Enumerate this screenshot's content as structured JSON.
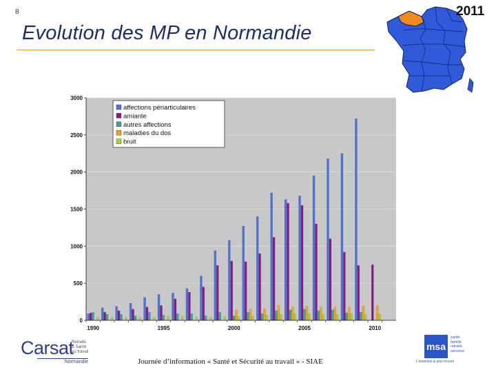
{
  "slide_number": "8",
  "title": "Evolution des MP en Normandie",
  "year_badge": "2011",
  "footer": "Journée d’information « Santé et Sécurité au travail » - SIAE",
  "logos": {
    "carsat_word": "Carsat",
    "carsat_tagline": [
      "Retraite",
      "& Santé",
      "au travail"
    ],
    "carsat_region": "Normandie",
    "msa_mark": "msa",
    "msa_lines": [
      "santé",
      "famille",
      "retraite",
      "services"
    ],
    "msa_tagline": "L'essentiel & plus encore"
  },
  "colors": {
    "affections": "#4a74d8",
    "amiante": "#8b1a8b",
    "autres": "#3aa39a",
    "dos": "#f0a418",
    "bruit": "#a8d030",
    "plot_bg": "#c8c8c8",
    "map_fill": "#2f5ad9",
    "map_highlight": "#f08a1c"
  },
  "chart_data": {
    "type": "bar",
    "title": "",
    "xlabel": "",
    "ylabel": "",
    "ylim": [
      0,
      3000
    ],
    "yticks": [
      "0",
      "500",
      "1000",
      "1500",
      "2000",
      "2500",
      "3000"
    ],
    "categories": [
      "1990",
      "1991",
      "1992",
      "1993",
      "1994",
      "1995",
      "1996",
      "1997",
      "1998",
      "1999",
      "2000",
      "2001",
      "2002",
      "2003",
      "2004",
      "2005",
      "2006",
      "2007",
      "2008",
      "2009",
      "2010",
      "2011"
    ],
    "xtick_labels": [
      "1990",
      "1995",
      "2000",
      "2005",
      "2010"
    ],
    "series": [
      {
        "name": "affections périarticulaires",
        "values": [
          90,
          170,
          190,
          230,
          310,
          350,
          370,
          430,
          600,
          940,
          1080,
          1270,
          1400,
          1720,
          1630,
          1680,
          1950,
          2180,
          2250,
          2720,
          0,
          0
        ]
      },
      {
        "name": "amiante",
        "values": [
          100,
          110,
          130,
          150,
          180,
          200,
          290,
          380,
          450,
          740,
          800,
          790,
          900,
          1120,
          1580,
          1550,
          1300,
          1100,
          920,
          740,
          750,
          0
        ]
      },
      {
        "name": "autres affections",
        "values": [
          110,
          80,
          80,
          60,
          110,
          70,
          90,
          90,
          60,
          110,
          60,
          110,
          90,
          130,
          140,
          150,
          130,
          140,
          100,
          110,
          0,
          0
        ]
      },
      {
        "name": "maladies du dos",
        "values": [
          0,
          0,
          0,
          0,
          0,
          0,
          0,
          0,
          0,
          0,
          140,
          150,
          160,
          200,
          180,
          190,
          180,
          180,
          180,
          190,
          200,
          0
        ]
      },
      {
        "name": "bruit",
        "values": [
          40,
          40,
          40,
          40,
          40,
          50,
          50,
          40,
          40,
          50,
          50,
          60,
          70,
          80,
          90,
          90,
          80,
          80,
          90,
          80,
          90,
          0
        ]
      }
    ]
  }
}
